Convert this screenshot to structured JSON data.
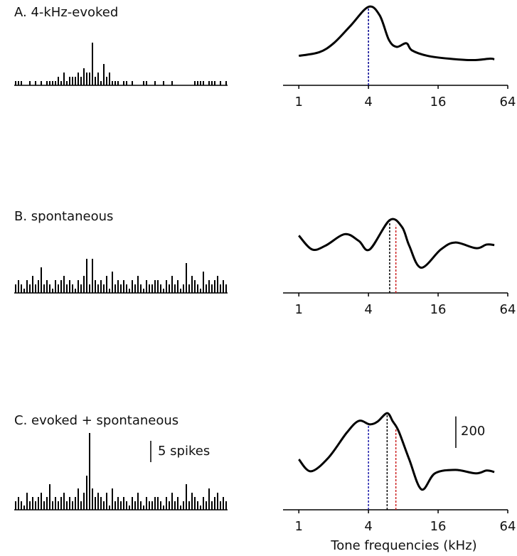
{
  "panels": [
    {
      "title": "A. 4-kHz-evoked",
      "histogram": {
        "type": "bar",
        "ylim": [
          0,
          20
        ],
        "values": [
          1,
          1,
          1,
          0,
          0,
          1,
          0,
          1,
          0,
          1,
          0,
          1,
          1,
          1,
          1,
          2,
          1,
          3,
          1,
          2,
          2,
          2,
          3,
          2,
          4,
          3,
          3,
          10,
          2,
          3,
          1,
          5,
          2,
          3,
          1,
          1,
          1,
          0,
          1,
          1,
          0,
          1,
          0,
          0,
          0,
          1,
          1,
          0,
          0,
          1,
          0,
          0,
          1,
          0,
          0,
          1,
          0,
          0,
          0,
          0,
          0,
          0,
          0,
          1,
          1,
          1,
          1,
          0,
          1,
          1,
          1,
          0,
          1,
          0,
          1
        ]
      },
      "tuning": {
        "type": "line",
        "xscale": "log",
        "xlim": [
          0.73,
          64
        ],
        "ylim": [
          0,
          600
        ],
        "xticks": [
          1,
          4,
          16,
          64
        ],
        "x": [
          1,
          1.5,
          2,
          2.8,
          4,
          5,
          6,
          7,
          8.5,
          9.5,
          13,
          20,
          32,
          45,
          49
        ],
        "values": [
          187,
          210,
          267,
          378,
          498,
          444,
          289,
          244,
          267,
          222,
          187,
          169,
          160,
          169,
          165
        ],
        "markers": [
          {
            "x": 4,
            "color": "#000000"
          },
          {
            "x": 4,
            "color": "#1a1aaa"
          }
        ]
      }
    },
    {
      "title": "B. spontaneous",
      "histogram": {
        "type": "bar",
        "ylim": [
          0,
          20
        ],
        "values": [
          2,
          3,
          2,
          1,
          3,
          2,
          4,
          2,
          3,
          6,
          2,
          3,
          2,
          1,
          3,
          2,
          3,
          4,
          2,
          3,
          2,
          1,
          3,
          2,
          4,
          8,
          2,
          8,
          3,
          2,
          3,
          2,
          4,
          1,
          5,
          2,
          3,
          2,
          3,
          2,
          1,
          3,
          2,
          4,
          2,
          1,
          3,
          2,
          2,
          3,
          3,
          2,
          1,
          3,
          2,
          4,
          2,
          3,
          1,
          2,
          7,
          2,
          4,
          3,
          2,
          1,
          5,
          2,
          3,
          2,
          3,
          4,
          2,
          3,
          2
        ]
      },
      "tuning": {
        "type": "line",
        "xscale": "log",
        "xlim": [
          0.73,
          64
        ],
        "ylim": [
          0,
          600
        ],
        "xticks": [
          1,
          4,
          16,
          64
        ],
        "x": [
          1,
          1.3,
          1.7,
          2.5,
          3.3,
          4.1,
          6.1,
          7.8,
          9,
          11.4,
          16.9,
          22.5,
          34,
          42,
          49
        ],
        "values": [
          364,
          276,
          300,
          373,
          330,
          276,
          462,
          418,
          300,
          160,
          276,
          320,
          284,
          307,
          304
        ],
        "markers": [
          {
            "x": 6.1,
            "color": "#000000"
          },
          {
            "x": 6.9,
            "color": "#cc2222"
          }
        ]
      }
    },
    {
      "title": "C. evoked + spontaneous",
      "histogram": {
        "type": "bar",
        "ylim": [
          0,
          20
        ],
        "values": [
          2,
          3,
          2,
          1,
          4,
          2,
          3,
          2,
          3,
          4,
          2,
          3,
          6,
          2,
          3,
          2,
          3,
          4,
          2,
          3,
          2,
          3,
          5,
          2,
          4,
          8,
          18,
          5,
          3,
          4,
          3,
          2,
          4,
          1,
          5,
          2,
          3,
          2,
          3,
          2,
          1,
          3,
          2,
          4,
          2,
          1,
          3,
          2,
          2,
          3,
          3,
          2,
          1,
          3,
          2,
          4,
          2,
          3,
          1,
          2,
          6,
          2,
          4,
          3,
          2,
          1,
          3,
          2,
          5,
          2,
          3,
          4,
          2,
          3,
          2
        ]
      },
      "tuning": {
        "type": "line",
        "xscale": "log",
        "xlim": [
          0.73,
          64
        ],
        "ylim": [
          0,
          600
        ],
        "xticks": [
          1,
          4,
          16,
          64
        ],
        "x": [
          1,
          1.27,
          1.8,
          2.6,
          3.3,
          4.1,
          4.8,
          5.8,
          6.5,
          7.3,
          9,
          11.5,
          15,
          22.5,
          34,
          42,
          49
        ],
        "values": [
          320,
          244,
          330,
          490,
          564,
          542,
          560,
          613,
          560,
          498,
          320,
          129,
          231,
          253,
          231,
          249,
          240
        ],
        "markers": [
          {
            "x": 4,
            "color": "#1a1aaa"
          },
          {
            "x": 5.8,
            "color": "#000000"
          },
          {
            "x": 6.9,
            "color": "#cc2222"
          }
        ]
      }
    }
  ],
  "xlabel": "Tone frequencies (kHz)",
  "spike_scale": {
    "value": 5,
    "label": "5 spikes"
  },
  "tuning_scale": 200
}
